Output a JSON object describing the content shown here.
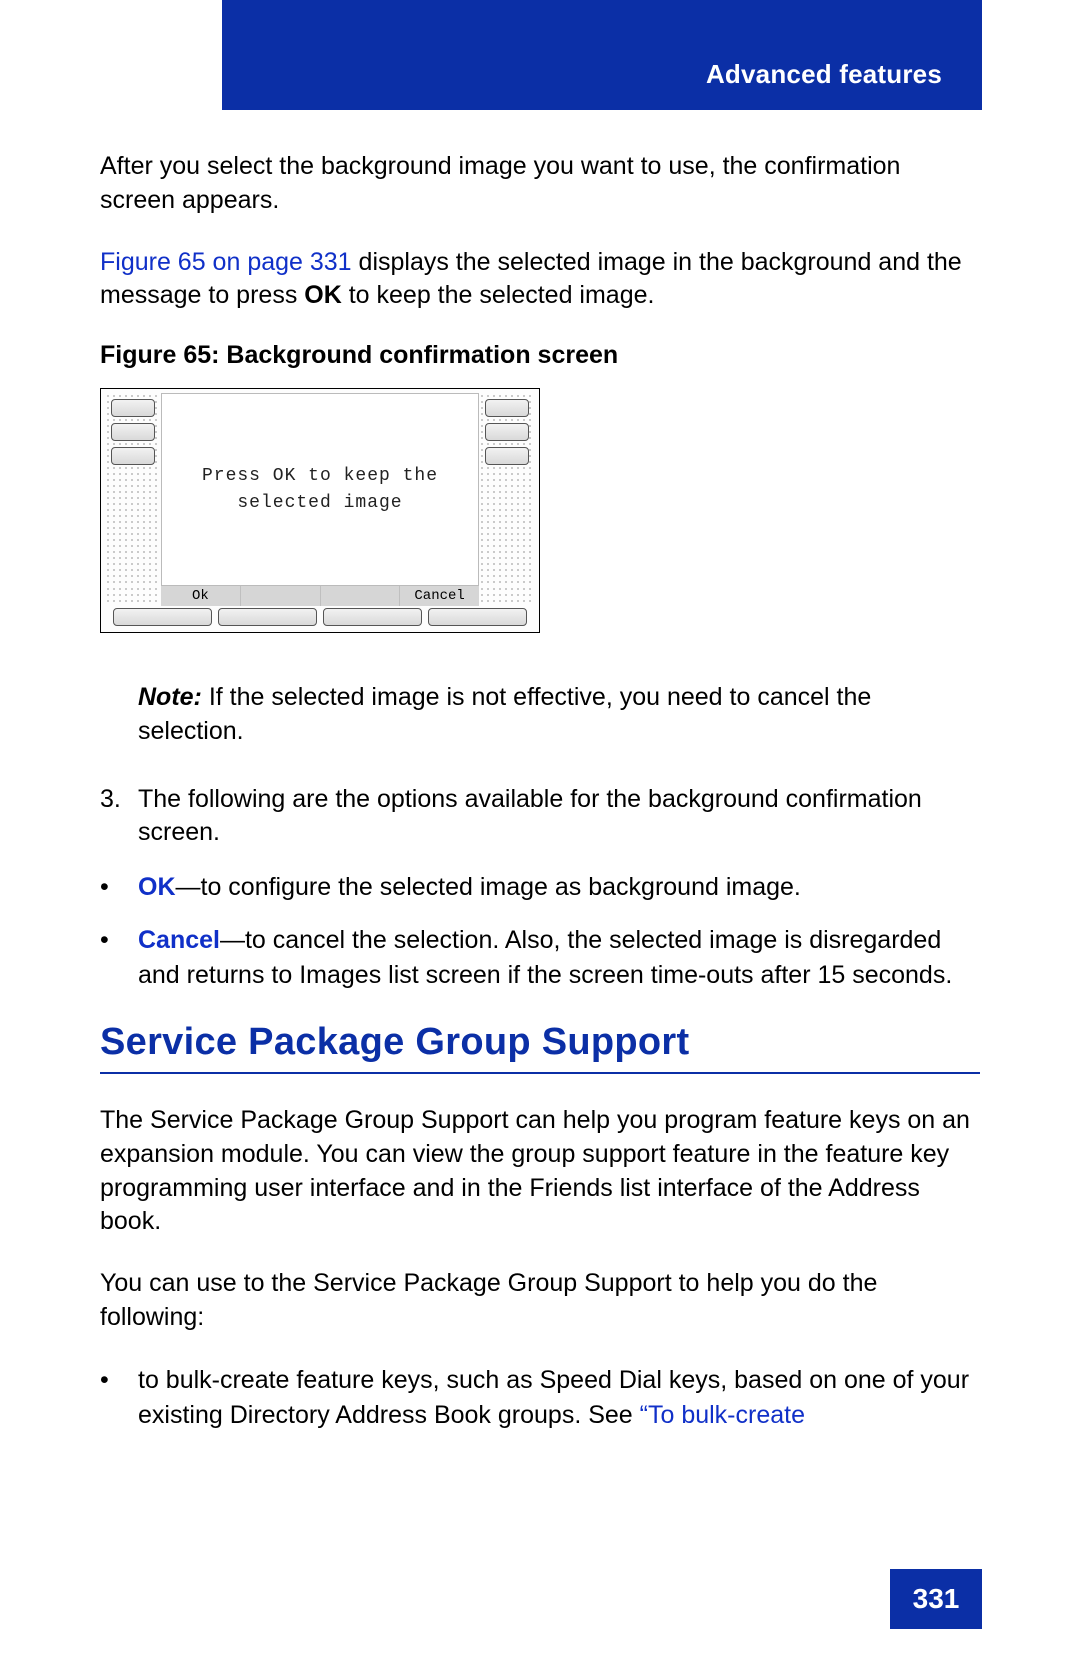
{
  "header": {
    "title": "Advanced features"
  },
  "intro": {
    "p1": "After you select the background image you want to use, the confirmation screen appears.",
    "p2_link": "Figure 65 on page 331",
    "p2_mid": " displays the selected image in the background and the message to press ",
    "p2_ok": "OK",
    "p2_end": " to keep the selected image."
  },
  "figure": {
    "caption": "Figure 65: Background confirmation screen",
    "message_line1": "Press OK to keep the",
    "message_line2": "selected image",
    "softkey_ok": "Ok",
    "softkey_blank": "",
    "softkey_cancel": "Cancel"
  },
  "note": {
    "label": "Note:",
    "text": "  If the selected image is not effective, you need to cancel the selection."
  },
  "step3": {
    "num": "3.",
    "text": "The following are the options available for the background confirmation screen."
  },
  "options": {
    "ok_term": "OK",
    "ok_desc": "—to configure the selected image as background image.",
    "cancel_term": "Cancel",
    "cancel_desc": "—to cancel the selection. Also, the selected image is disregarded and returns to Images list screen if the screen time-outs after 15 seconds."
  },
  "section": {
    "title": "Service Package Group Support"
  },
  "body": {
    "p1": "The Service Package Group Support can help you program feature keys on an expansion module. You can view the group support feature in the feature key programming user interface and in the Friends list interface of the Address book.",
    "p2": "You can use to the Service Package Group Support to help you do the following:"
  },
  "body_bullets": {
    "b1_pre": "to bulk-create feature keys, such as Speed Dial keys, based on one of your existing Directory Address Book groups. See ",
    "b1_link": "“To bulk-create"
  },
  "footer": {
    "page": "331"
  },
  "colors": {
    "brand": "#0b2fa6",
    "link": "#1030c8"
  }
}
